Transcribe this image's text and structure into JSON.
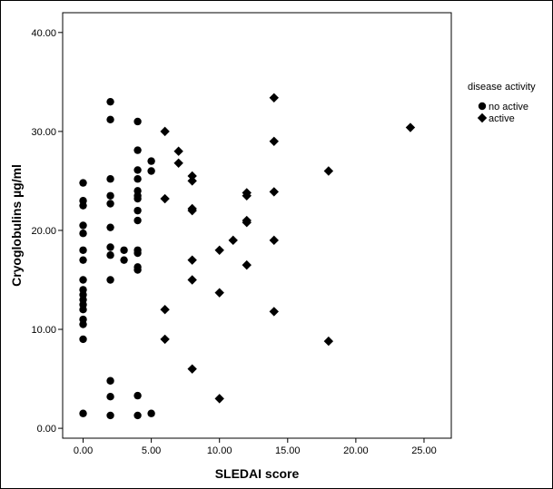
{
  "chart_data": {
    "type": "scatter",
    "title": "",
    "xlabel": "SLEDAI score",
    "ylabel": "Cryoglobulins µg/ml",
    "xlim": [
      -1.5,
      27
    ],
    "ylim": [
      -1,
      42
    ],
    "x_ticks": [
      0,
      5,
      10,
      15,
      20,
      25
    ],
    "x_tick_labels": [
      "0.00",
      "5.00",
      "10.00",
      "15.00",
      "20.00",
      "25.00"
    ],
    "y_ticks": [
      0,
      10,
      20,
      30,
      40
    ],
    "y_tick_labels": [
      "0.00",
      "10.00",
      "20.00",
      "30.00",
      "40.00"
    ],
    "grid": false,
    "legend": {
      "title": "disease activity",
      "position": "right",
      "entries": [
        {
          "label": "no active",
          "marker": "circle"
        },
        {
          "label": "active",
          "marker": "diamond"
        }
      ]
    },
    "series": [
      {
        "name": "no active",
        "marker": "circle",
        "color": "#000000",
        "points": [
          [
            0,
            24.8
          ],
          [
            0,
            23
          ],
          [
            0,
            22.5
          ],
          [
            0,
            20.5
          ],
          [
            0,
            19.7
          ],
          [
            0,
            18
          ],
          [
            0,
            17
          ],
          [
            0,
            15
          ],
          [
            0,
            14
          ],
          [
            0,
            13.5
          ],
          [
            0,
            13
          ],
          [
            0,
            12.5
          ],
          [
            0,
            12
          ],
          [
            0,
            11
          ],
          [
            0,
            10.5
          ],
          [
            0,
            9
          ],
          [
            0,
            1.5
          ],
          [
            2,
            33
          ],
          [
            2,
            31.2
          ],
          [
            2,
            25.2
          ],
          [
            2,
            23.5
          ],
          [
            2,
            22.7
          ],
          [
            2,
            20.3
          ],
          [
            2,
            18.3
          ],
          [
            2,
            17.5
          ],
          [
            2,
            15
          ],
          [
            2,
            4.8
          ],
          [
            2,
            3.2
          ],
          [
            2,
            1.3
          ],
          [
            3,
            18
          ],
          [
            3,
            17
          ],
          [
            4,
            31
          ],
          [
            4,
            28.1
          ],
          [
            4,
            26.1
          ],
          [
            4,
            25.2
          ],
          [
            4,
            24
          ],
          [
            4,
            23.5
          ],
          [
            4,
            23.2
          ],
          [
            4,
            22
          ],
          [
            4,
            21
          ],
          [
            4,
            18
          ],
          [
            4,
            17.7
          ],
          [
            4,
            16.3
          ],
          [
            4,
            16
          ],
          [
            4,
            3.3
          ],
          [
            4,
            1.3
          ],
          [
            5,
            27
          ],
          [
            5,
            26
          ],
          [
            5,
            1.5
          ]
        ]
      },
      {
        "name": "active",
        "marker": "diamond",
        "color": "#000000",
        "points": [
          [
            6,
            30
          ],
          [
            6,
            23.2
          ],
          [
            6,
            12
          ],
          [
            6,
            9
          ],
          [
            7,
            28
          ],
          [
            7,
            26.8
          ],
          [
            8,
            25.5
          ],
          [
            8,
            25
          ],
          [
            8,
            22.2
          ],
          [
            8,
            22
          ],
          [
            8,
            17
          ],
          [
            8,
            15
          ],
          [
            8,
            6
          ],
          [
            10,
            18
          ],
          [
            10,
            13.7
          ],
          [
            10,
            3
          ],
          [
            11,
            19
          ],
          [
            12,
            23.8
          ],
          [
            12,
            23.5
          ],
          [
            12,
            21
          ],
          [
            12,
            20.8
          ],
          [
            12,
            16.5
          ],
          [
            14,
            33.4
          ],
          [
            14,
            29
          ],
          [
            14,
            23.9
          ],
          [
            14,
            19
          ],
          [
            14,
            11.8
          ],
          [
            18,
            26
          ],
          [
            18,
            8.8
          ],
          [
            24,
            30.4
          ]
        ]
      }
    ]
  }
}
